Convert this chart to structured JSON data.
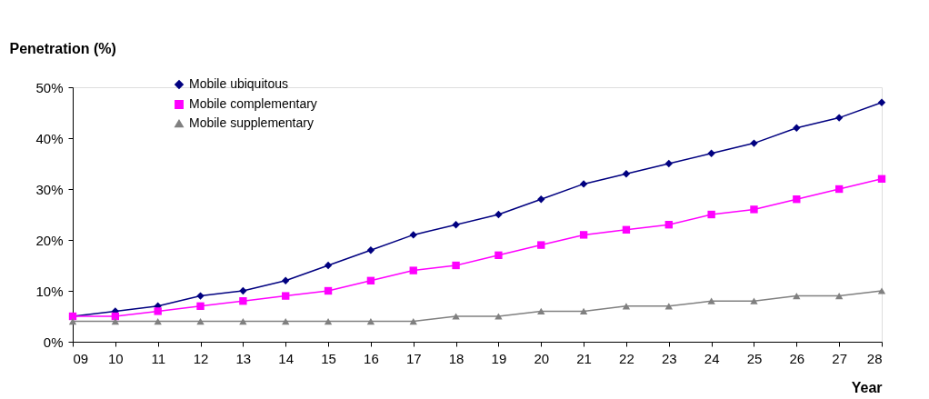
{
  "chart_data": {
    "type": "line",
    "xlabel": "Year",
    "ylabel": "Penetration (%)",
    "categories": [
      "09",
      "10",
      "11",
      "12",
      "13",
      "14",
      "15",
      "16",
      "17",
      "18",
      "19",
      "20",
      "21",
      "22",
      "23",
      "24",
      "25",
      "26",
      "27",
      "28"
    ],
    "series": [
      {
        "name": "Mobile ubiquitous",
        "color": "#000080",
        "marker": "diamond",
        "values": [
          5,
          6,
          7,
          9,
          10,
          12,
          15,
          18,
          21,
          23,
          25,
          28,
          31,
          33,
          35,
          37,
          39,
          42,
          44,
          47
        ]
      },
      {
        "name": "Mobile complementary",
        "color": "#ff00ff",
        "marker": "square",
        "values": [
          5,
          5,
          6,
          7,
          8,
          9,
          10,
          12,
          14,
          15,
          17,
          19,
          21,
          22,
          23,
          25,
          26,
          28,
          30,
          32
        ]
      },
      {
        "name": "Mobile supplementary",
        "color": "#808080",
        "marker": "triangle",
        "values": [
          4,
          4,
          4,
          4,
          4,
          4,
          4,
          4,
          4,
          5,
          5,
          6,
          6,
          7,
          7,
          8,
          8,
          9,
          9,
          10
        ]
      }
    ],
    "ylim": [
      0,
      50
    ],
    "yticks": [
      {
        "value": 0,
        "label": "0%"
      },
      {
        "value": 10,
        "label": "10%"
      },
      {
        "value": 20,
        "label": "20%"
      },
      {
        "value": 30,
        "label": "30%"
      },
      {
        "value": 40,
        "label": "40%"
      },
      {
        "value": 50,
        "label": "50%"
      }
    ],
    "legend": "top left",
    "grid": false,
    "line_style": "solid"
  }
}
